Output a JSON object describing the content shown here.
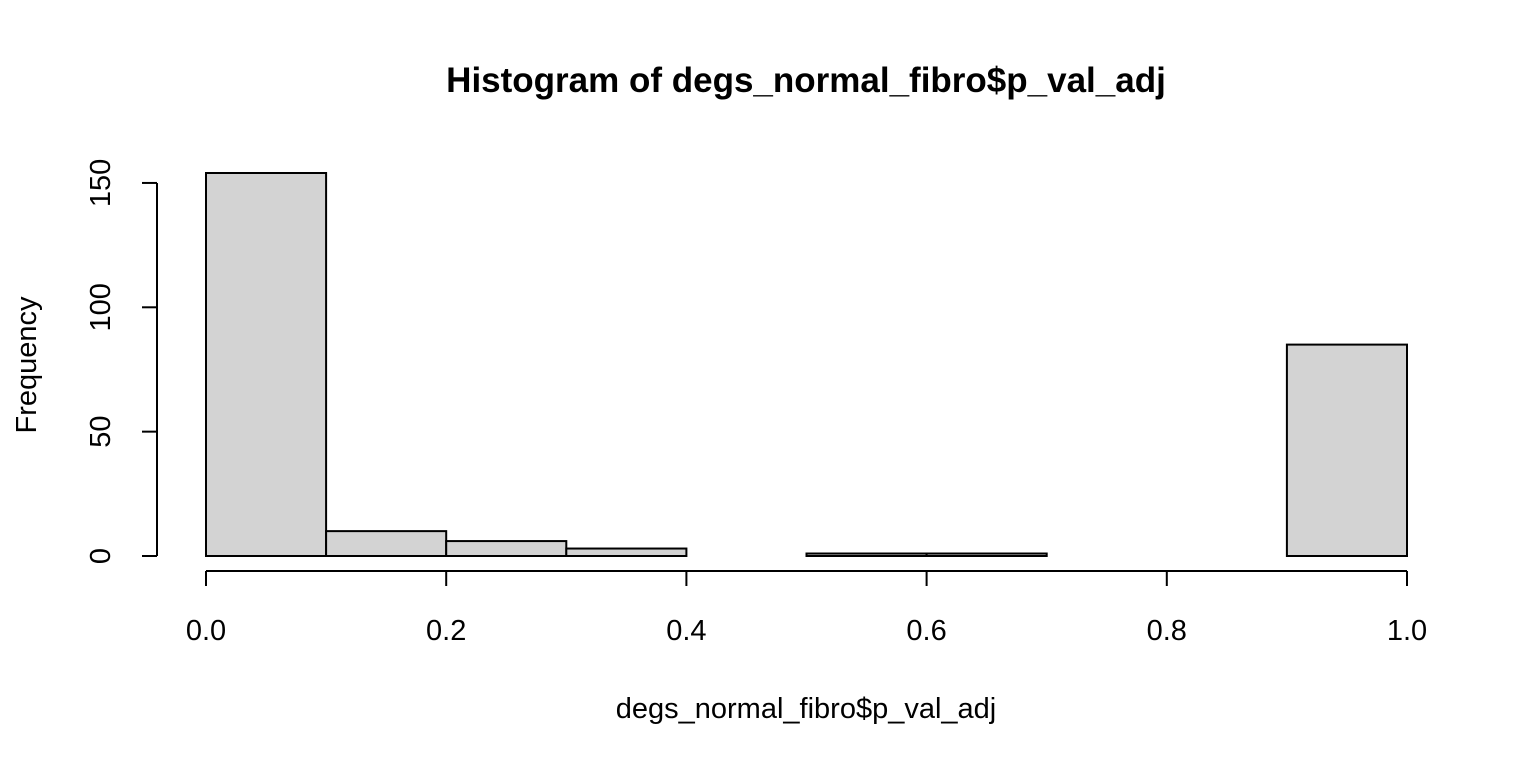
{
  "chart_data": {
    "type": "bar",
    "title": "Histogram of degs_normal_fibro$p_val_adj",
    "xlabel": "degs_normal_fibro$p_val_adj",
    "ylabel": "Frequency",
    "bins": [
      {
        "from": 0.0,
        "to": 0.1,
        "count": 154
      },
      {
        "from": 0.1,
        "to": 0.2,
        "count": 10
      },
      {
        "from": 0.2,
        "to": 0.3,
        "count": 6
      },
      {
        "from": 0.3,
        "to": 0.4,
        "count": 3
      },
      {
        "from": 0.4,
        "to": 0.5,
        "count": 0
      },
      {
        "from": 0.5,
        "to": 0.6,
        "count": 1
      },
      {
        "from": 0.6,
        "to": 0.7,
        "count": 1
      },
      {
        "from": 0.7,
        "to": 0.8,
        "count": 0
      },
      {
        "from": 0.8,
        "to": 0.9,
        "count": 0
      },
      {
        "from": 0.9,
        "to": 1.0,
        "count": 85
      }
    ],
    "xlim": [
      0,
      1
    ],
    "ylim": [
      0,
      154
    ],
    "x_ticks": [
      "0.0",
      "0.2",
      "0.4",
      "0.6",
      "0.8",
      "1.0"
    ],
    "y_ticks": [
      "0",
      "50",
      "100",
      "150"
    ],
    "bar_fill": "#d3d3d3",
    "bar_border": "#000000",
    "grid": false,
    "legend": "none"
  }
}
